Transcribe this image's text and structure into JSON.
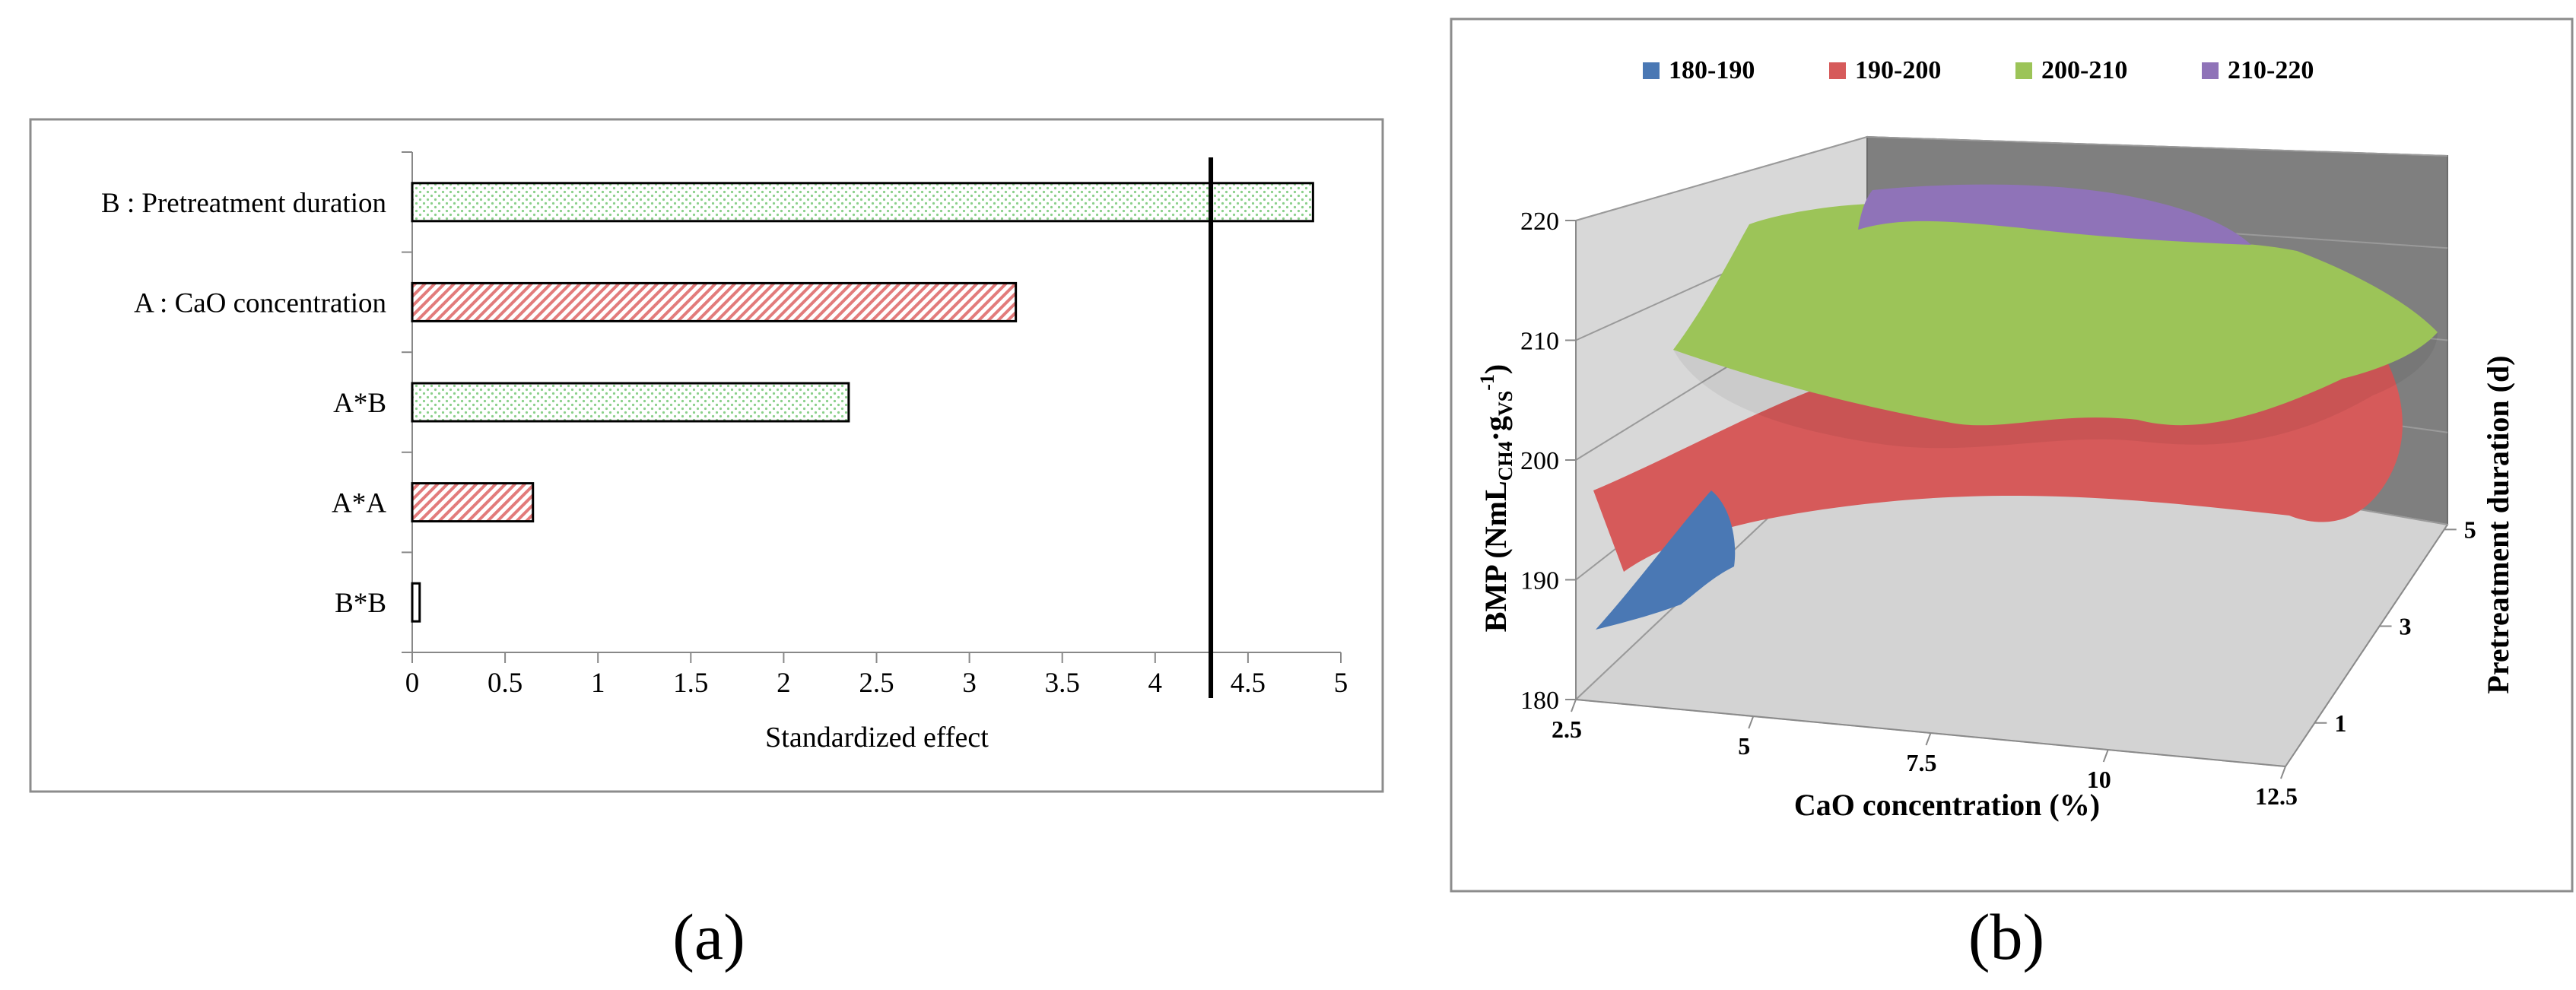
{
  "chart_data": [
    {
      "type": "bar",
      "orientation": "horizontal",
      "title": "",
      "xlabel": "Standardized effect",
      "ylabel": "",
      "categories": [
        "B : Pretreatment duration",
        "A : CaO concentration",
        "A*B",
        "A*A",
        "B*B"
      ],
      "values": [
        4.85,
        3.25,
        2.35,
        0.65,
        0.04
      ],
      "bar_fill": [
        "green-dotted",
        "red-hatched",
        "green-dotted",
        "red-hatched",
        "white"
      ],
      "xlim": [
        0,
        5
      ],
      "xticks": [
        "0",
        "0.5",
        "1",
        "1.5",
        "2",
        "2.5",
        "3",
        "3.5",
        "4",
        "4.5",
        "5"
      ],
      "reference_line": 4.3,
      "grid": false
    },
    {
      "type": "surface",
      "title": "",
      "xlabel": "CaO concentration (%)",
      "ylabel": "Pretreatment duration (d)",
      "zlabel_main": "BMP (NmL",
      "zlabel_sub1": "CH4",
      "zlabel_mid": "·g",
      "zlabel_sub2": "VS",
      "zlabel_sup": "-1",
      "zlabel_end": ")",
      "x_ticks": [
        "2.5",
        "5",
        "7.5",
        "10",
        "12.5"
      ],
      "y_ticks": [
        "1",
        "3",
        "5"
      ],
      "z_ticks": [
        "180",
        "190",
        "200",
        "210",
        "220"
      ],
      "zlim": [
        180,
        220
      ],
      "legend": [
        {
          "label": "180-190",
          "color": "#4a78b4"
        },
        {
          "label": "190-200",
          "color": "#d65a5a"
        },
        {
          "label": "200-210",
          "color": "#9cc458"
        },
        {
          "label": "210-220",
          "color": "#8f73b8"
        }
      ],
      "legend_position": "top"
    }
  ],
  "captions": {
    "a": "(a)",
    "b": "(b)"
  }
}
